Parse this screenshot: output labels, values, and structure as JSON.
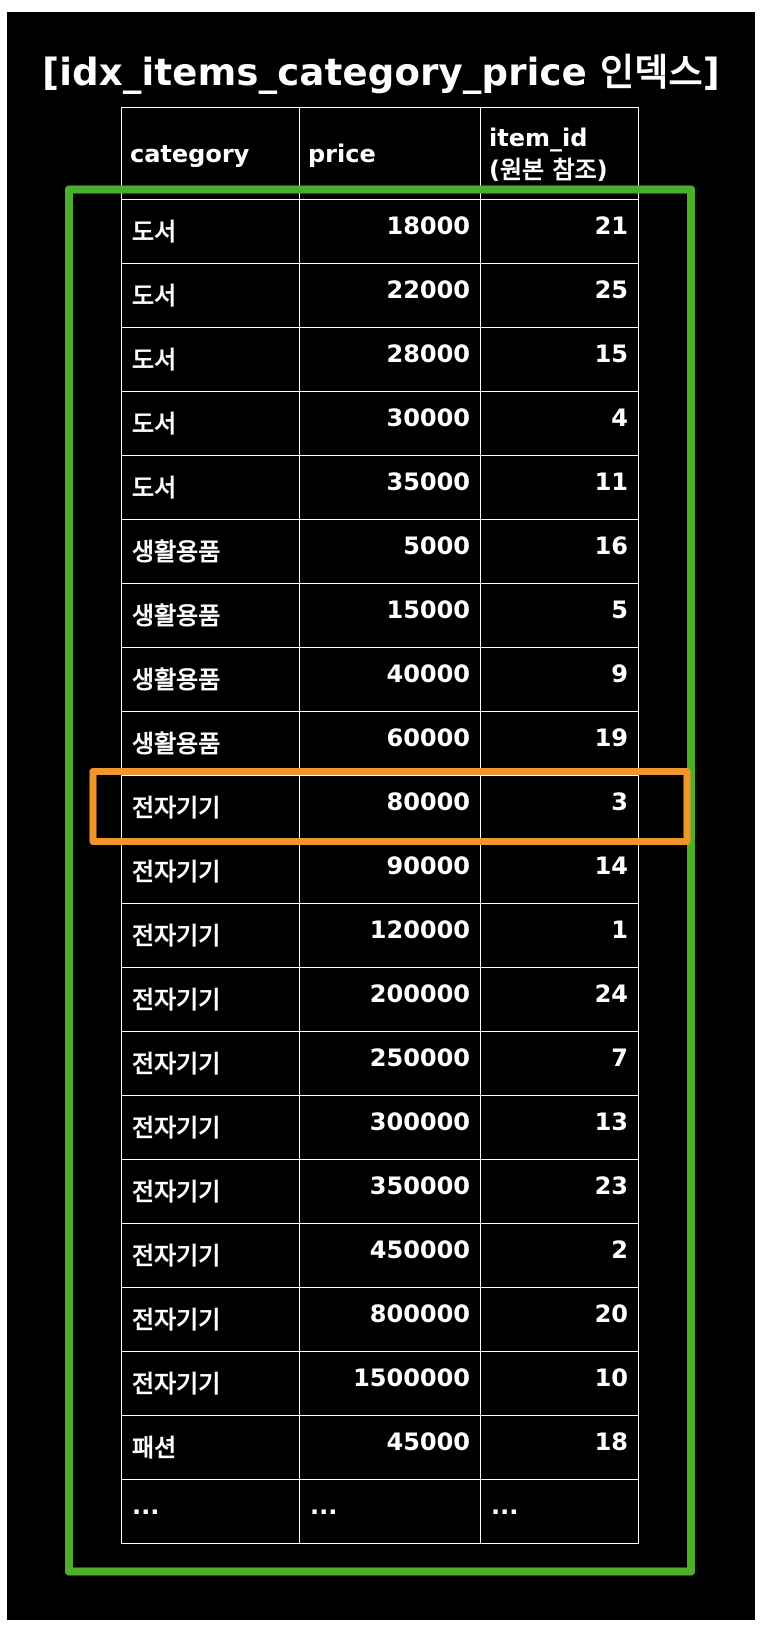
{
  "title": "[idx_items_category_price 인덱스]",
  "colors": {
    "background": "#000000",
    "text": "#ffffff",
    "scan_range": "#4caf2a",
    "match": "#f0962a"
  },
  "table": {
    "headers": [
      "category",
      "price",
      "item_id\n(원본 참조)"
    ],
    "rows": [
      [
        "도서",
        "18000",
        "21"
      ],
      [
        "도서",
        "22000",
        "25"
      ],
      [
        "도서",
        "28000",
        "15"
      ],
      [
        "도서",
        "30000",
        "4"
      ],
      [
        "도서",
        "35000",
        "11"
      ],
      [
        "생활용품",
        "5000",
        "16"
      ],
      [
        "생활용품",
        "15000",
        "5"
      ],
      [
        "생활용품",
        "40000",
        "9"
      ],
      [
        "생활용품",
        "60000",
        "19"
      ],
      [
        "전자기기",
        "80000",
        "3"
      ],
      [
        "전자기기",
        "90000",
        "14"
      ],
      [
        "전자기기",
        "120000",
        "1"
      ],
      [
        "전자기기",
        "200000",
        "24"
      ],
      [
        "전자기기",
        "250000",
        "7"
      ],
      [
        "전자기기",
        "300000",
        "13"
      ],
      [
        "전자기기",
        "350000",
        "23"
      ],
      [
        "전자기기",
        "450000",
        "2"
      ],
      [
        "전자기기",
        "800000",
        "20"
      ],
      [
        "전자기기",
        "1500000",
        "10"
      ],
      [
        "패션",
        "45000",
        "18"
      ],
      [
        "...",
        "...",
        "..."
      ]
    ]
  },
  "highlights": {
    "scan_range_rows": [
      0,
      20
    ],
    "matched_row": 9
  }
}
